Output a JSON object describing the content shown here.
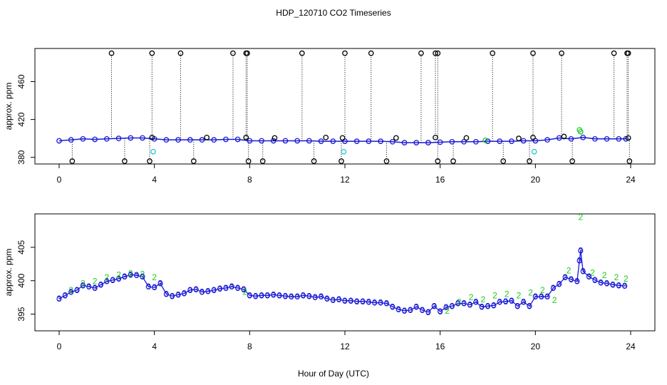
{
  "title": "HDP_120710  CO2 Timeseries",
  "colors": {
    "black": "#000000",
    "blue": "#1a1ad6",
    "green": "#1ec81e",
    "cyan": "#22c8d0"
  },
  "chart_data": [
    {
      "type": "scatter",
      "name": "top-panel",
      "title": "",
      "xlabel": "",
      "ylabel": "approx. ppm",
      "xlim": [
        0,
        24
      ],
      "ylim": [
        373,
        495
      ],
      "xticks": [
        0,
        4,
        8,
        12,
        16,
        20,
        24
      ],
      "yticks": [
        380,
        420,
        460
      ],
      "series": [
        {
          "name": "co2-blue",
          "color": "#1a1ad6",
          "x": [
            0,
            0.5,
            1,
            1.5,
            2,
            2.5,
            3,
            3.5,
            4,
            4.5,
            5,
            5.5,
            6,
            6.5,
            7,
            7.5,
            8,
            8.5,
            9,
            9.5,
            10,
            10.5,
            11,
            11.5,
            12,
            12.5,
            13,
            13.5,
            14,
            14.5,
            15,
            15.5,
            16,
            16.5,
            17,
            17.5,
            18,
            18.5,
            19,
            19.5,
            20,
            20.5,
            21,
            21.5,
            22,
            22.5,
            23,
            23.5,
            23.8
          ],
          "y": [
            397.5,
            398.5,
            399.5,
            399,
            399.5,
            400,
            400.5,
            400.5,
            399.5,
            398.5,
            398.5,
            398.5,
            398.5,
            398.5,
            399,
            399,
            397.5,
            397.5,
            397.5,
            397.5,
            397.5,
            397.5,
            397,
            397,
            397,
            397,
            397,
            397,
            396.5,
            395.5,
            395.5,
            395.5,
            396,
            396.5,
            396.5,
            396.5,
            397,
            397,
            397,
            397.5,
            397.5,
            398.5,
            400.5,
            399.5,
            401,
            399.5,
            399.5,
            399.5,
            399.5
          ]
        },
        {
          "name": "outliers-high",
          "color": "#000000",
          "x": [
            2.2,
            3.9,
            5.1,
            7.3,
            7.85,
            7.9,
            10.2,
            12,
            13.1,
            15.2,
            15.8,
            15.9,
            18.2,
            19.9,
            21.1,
            23.3,
            23.85,
            23.9
          ],
          "y": [
            490,
            490,
            490,
            490,
            490,
            490,
            490,
            490,
            490,
            490,
            490,
            490,
            490,
            490,
            490,
            490,
            490,
            490
          ]
        },
        {
          "name": "outliers-low",
          "color": "#000000",
          "x": [
            0.55,
            2.75,
            3.8,
            5.65,
            7.95,
            8.55,
            10.7,
            11.85,
            13.75,
            15.9,
            16.55,
            18.65,
            19.75,
            21.55,
            23.95
          ],
          "y": [
            376,
            376,
            376,
            376,
            376,
            376,
            376,
            376,
            376,
            376,
            376,
            376,
            376,
            376,
            376
          ]
        },
        {
          "name": "outliers-mid",
          "color": "#000000",
          "x": [
            3.9,
            6.2,
            7.85,
            9.05,
            11.2,
            11.9,
            14.15,
            15.8,
            17.1,
            19.3,
            19.9,
            21.2,
            23.9
          ],
          "y": [
            401,
            401,
            401,
            400.5,
            401,
            400.5,
            400.5,
            401,
            400.5,
            400,
            401,
            402,
            400.5
          ]
        },
        {
          "name": "cyan-points",
          "color": "#22c8d0",
          "x": [
            3.95,
            11.95,
            19.95
          ],
          "y": [
            386,
            386,
            386
          ]
        },
        {
          "name": "green-points",
          "color": "#1ec81e",
          "x": [
            17.9,
            21.85,
            21.9
          ],
          "y": [
            398,
            409,
            407
          ]
        }
      ]
    },
    {
      "type": "line",
      "name": "bottom-panel",
      "title": "",
      "xlabel": "Hour of Day (UTC)",
      "ylabel": "approx. ppm",
      "xlim": [
        0,
        24
      ],
      "ylim": [
        392.5,
        410
      ],
      "xticks": [
        0,
        4,
        8,
        12,
        16,
        20,
        24
      ],
      "yticks": [
        395,
        400,
        405
      ],
      "series": [
        {
          "name": "series-3-blue",
          "marker": "3",
          "color": "#1a1ad6",
          "x": [
            0,
            0.25,
            0.5,
            0.75,
            1,
            1.25,
            1.5,
            1.75,
            2,
            2.25,
            2.5,
            2.75,
            3,
            3.25,
            3.5,
            3.75,
            4,
            4.25,
            4.5,
            4.75,
            5,
            5.25,
            5.5,
            5.75,
            6,
            6.25,
            6.5,
            6.75,
            7,
            7.25,
            7.5,
            7.75,
            8,
            8.25,
            8.5,
            8.75,
            9,
            9.25,
            9.5,
            9.75,
            10,
            10.25,
            10.5,
            10.75,
            11,
            11.25,
            11.5,
            11.75,
            12,
            12.25,
            12.5,
            12.75,
            13,
            13.25,
            13.5,
            13.75,
            14,
            14.25,
            14.5,
            14.75,
            15,
            15.25,
            15.5,
            15.75,
            16,
            16.25,
            16.5,
            16.75,
            17,
            17.25,
            17.5,
            17.75,
            18,
            18.25,
            18.5,
            18.75,
            19,
            19.25,
            19.5,
            19.75,
            20,
            20.25,
            20.5,
            20.75,
            21,
            21.25,
            21.5,
            21.75,
            21.85,
            21.9,
            22,
            22.25,
            22.5,
            22.75,
            23,
            23.25,
            23.5,
            23.75
          ],
          "y": [
            397.3,
            397.8,
            398.3,
            398.6,
            399.3,
            399.1,
            398.9,
            399.4,
            399.9,
            400.1,
            400.3,
            400.6,
            400.9,
            400.8,
            400.6,
            399.1,
            399,
            399.6,
            398,
            397.7,
            397.9,
            398.1,
            398.6,
            398.7,
            398.3,
            398.4,
            398.6,
            398.8,
            398.9,
            399.1,
            398.9,
            398.7,
            397.8,
            397.7,
            397.8,
            397.8,
            397.9,
            397.8,
            397.7,
            397.6,
            397.6,
            397.8,
            397.7,
            397.5,
            397.6,
            397.3,
            397.1,
            397.2,
            397,
            397,
            396.9,
            396.9,
            396.8,
            396.7,
            396.7,
            396.6,
            396.1,
            395.7,
            395.5,
            395.6,
            396.1,
            395.6,
            395.3,
            396.2,
            395.4,
            396,
            396.2,
            396.6,
            396.6,
            396.4,
            396.8,
            396.1,
            396.2,
            396.3,
            396.8,
            396.9,
            397,
            396.2,
            396.8,
            396.2,
            397.6,
            397.6,
            397.6,
            398.9,
            399.5,
            400.5,
            400.2,
            399.9,
            403,
            404.5,
            401.4,
            400.6,
            400.1,
            399.7,
            399.6,
            399.4,
            399.3,
            399.2
          ]
        },
        {
          "name": "series-2-green",
          "marker": "2",
          "color": "#1ec81e",
          "x": [
            0.5,
            1,
            1.5,
            2,
            2.5,
            3,
            3.5,
            4,
            7.8,
            16.3,
            16.8,
            17.3,
            17.8,
            18.3,
            18.8,
            19.3,
            19.8,
            20.3,
            20.8,
            21.4,
            21.9,
            22.4,
            22.9,
            23.4,
            23.8
          ],
          "y": [
            398.6,
            399.6,
            399.9,
            400.5,
            400.9,
            401.1,
            401,
            400.5,
            398.3,
            395.5,
            396.8,
            397.5,
            397.2,
            397.8,
            398,
            397.8,
            398.2,
            398.6,
            397.1,
            401.5,
            409.5,
            401.2,
            400.8,
            400.5,
            400.3
          ]
        }
      ]
    }
  ]
}
